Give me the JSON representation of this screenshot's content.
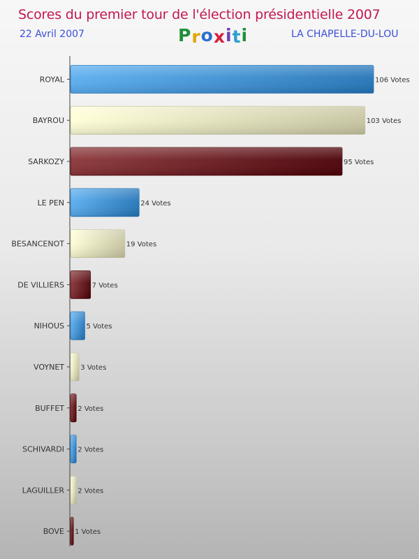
{
  "header": {
    "title": "Scores du premier tour de l'élection présidentielle 2007",
    "date": "22 Avril 2007",
    "location": "LA CHAPELLE-DU-LOU",
    "logo_letters": [
      {
        "ch": "P",
        "color": "#1f8f3a"
      },
      {
        "ch": "r",
        "color": "#e0a800"
      },
      {
        "ch": "o",
        "color": "#2a6fd1"
      },
      {
        "ch": "x",
        "color": "#d6213f"
      },
      {
        "ch": "i",
        "color": "#6a3fb5"
      },
      {
        "ch": "t",
        "color": "#2a9fd1"
      },
      {
        "ch": "i",
        "color": "#1f8f3a"
      }
    ]
  },
  "colors": {
    "blue": [
      "#5aaef0",
      "#2374b8"
    ],
    "cream": [
      "#ffffd8",
      "#c6c4a0"
    ],
    "maroon": [
      "#8a3538",
      "#4a0006"
    ]
  },
  "chart_data": {
    "type": "bar",
    "orientation": "horizontal",
    "categories": [
      "ROYAL",
      "BAYROU",
      "SARKOZY",
      "LE PEN",
      "BESANCENOT",
      "DE VILLIERS",
      "NIHOUS",
      "VOYNET",
      "BUFFET",
      "SCHIVARDI",
      "LAGUILLER",
      "BOVE"
    ],
    "values": [
      106,
      103,
      95,
      24,
      19,
      7,
      5,
      3,
      2,
      2,
      2,
      1
    ],
    "value_labels": [
      "106 Votes",
      "103 Votes",
      "95 Votes",
      "24 Votes",
      "19 Votes",
      "7 Votes",
      "5 Votes",
      "3 Votes",
      "2 Votes",
      "2 Votes",
      "2 Votes",
      "1 Votes"
    ],
    "bar_colors": [
      "blue",
      "cream",
      "maroon",
      "blue",
      "cream",
      "maroon",
      "blue",
      "cream",
      "maroon",
      "blue",
      "cream",
      "maroon"
    ],
    "xlim": [
      0,
      106
    ]
  }
}
